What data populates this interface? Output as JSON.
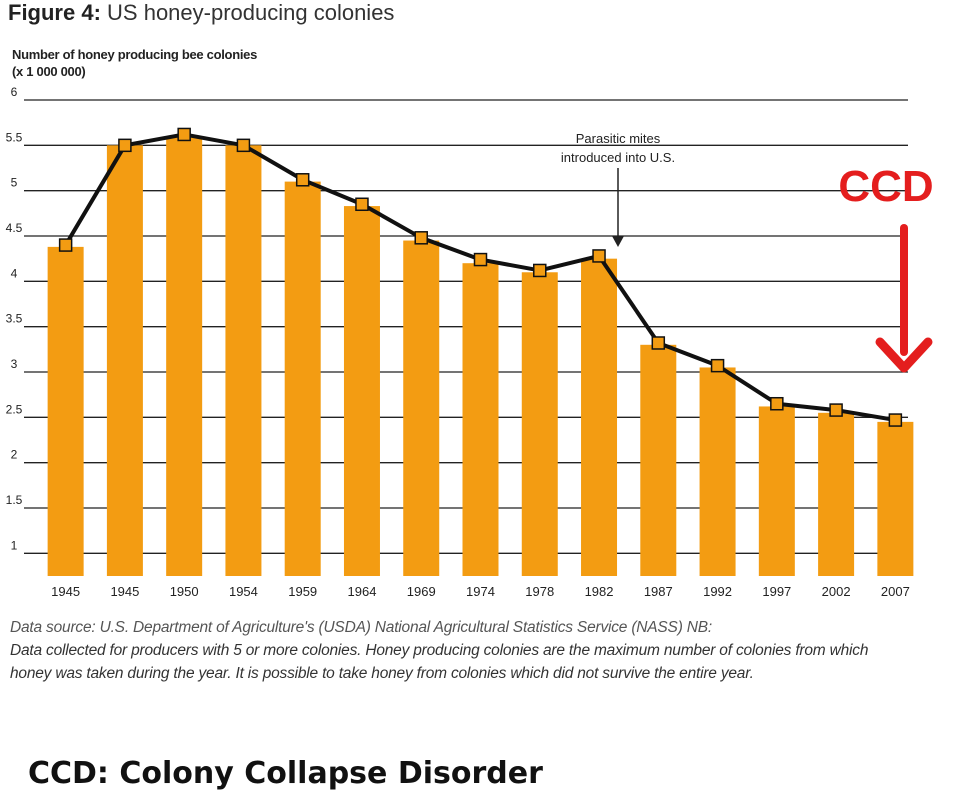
{
  "figure": {
    "label": "Figure 4:",
    "title": "US honey-producing colonies",
    "ylabel_line1": "Number of honey producing bee colonies",
    "ylabel_line2": "(x 1 000 000)",
    "annotation_line1": "Parasitic mites",
    "annotation_line2": "introduced into U.S.",
    "ccd_label": "CCD",
    "source_lead": "Data source: U.S. Department of Agriculture's (USDA) National Agricultural Statistics Service (NASS) NB:",
    "source_body": "Data collected for producers with 5 or more colonies. Honey producing colonies are the maximum number of colonies from which honey was taken during the year. It is possible to take honey from colonies which did not survive the entire year.",
    "caption": "CCD: Colony Collapse Disorder",
    "colors": {
      "bar": "#F39C12",
      "line": "#111111",
      "marker": "#F39C12",
      "ccd": "#E41E1E",
      "grid": "#222222"
    }
  },
  "chart_data": {
    "type": "bar",
    "categories": [
      "1945",
      "1945",
      "1950",
      "1954",
      "1959",
      "1964",
      "1969",
      "1974",
      "1978",
      "1982",
      "1987",
      "1992",
      "1997",
      "2002",
      "2007"
    ],
    "values": [
      4.38,
      5.5,
      5.6,
      5.5,
      5.1,
      4.83,
      4.45,
      4.2,
      4.1,
      4.25,
      3.3,
      3.05,
      2.62,
      2.55,
      2.45
    ],
    "line_values": [
      4.4,
      5.5,
      5.62,
      5.5,
      5.12,
      4.85,
      4.48,
      4.24,
      4.12,
      4.28,
      3.32,
      3.07,
      2.65,
      2.58,
      2.47
    ],
    "yticks": [
      "1",
      "1.5",
      "2",
      "2.5",
      "3",
      "3.5",
      "4",
      "4.5",
      "5",
      "5.5",
      "6"
    ],
    "ylim": [
      0.75,
      6
    ],
    "grid": true,
    "ylabel": "Number of honey producing bee colonies (x 1 000 000)",
    "title": "US honey-producing colonies"
  }
}
